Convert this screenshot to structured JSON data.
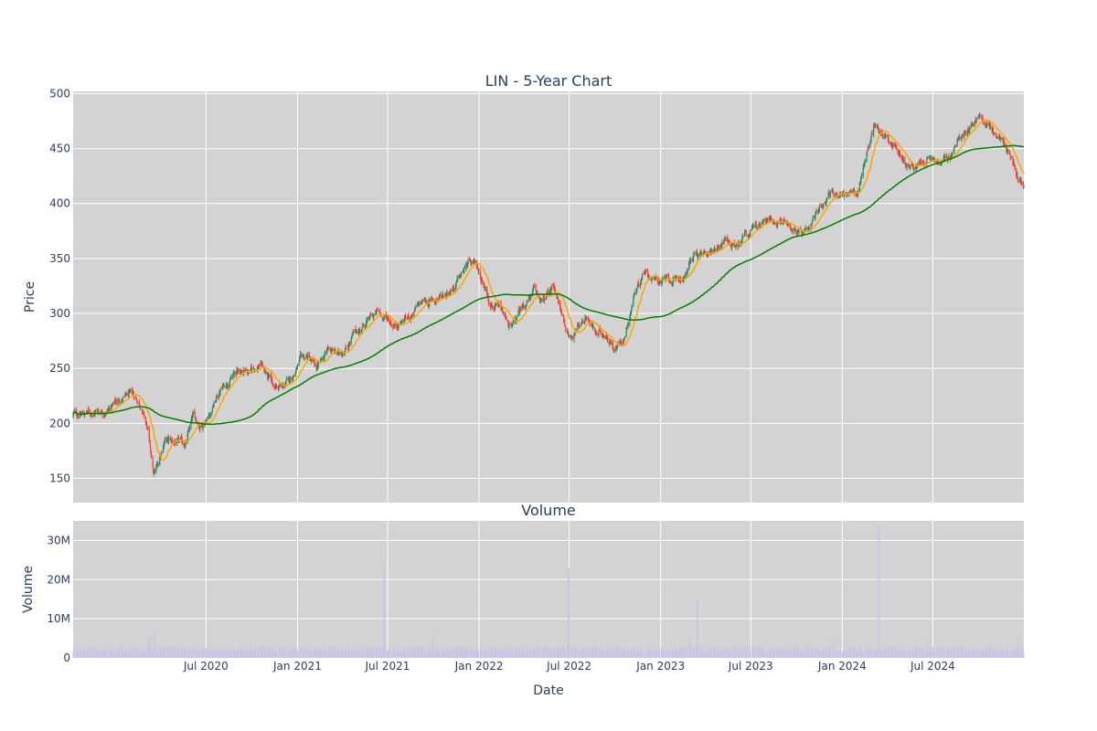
{
  "chart_data": [
    {
      "type": "candlestick",
      "title": "LIN - 5-Year Chart",
      "ylabel": "Price",
      "ylim": [
        128,
        502
      ],
      "yticks": [
        150,
        200,
        250,
        300,
        350,
        400,
        450,
        500
      ],
      "grid": true,
      "background": "#d3d3d3",
      "colors": {
        "up": "#2e8b57",
        "down": "#ff3b30",
        "ma_short": "#ffa500",
        "ma_long": "#008000"
      },
      "date_range": [
        "2019-10-08",
        "2024-12-31"
      ],
      "price_anchors": [
        [
          "2019-10-08",
          208
        ],
        [
          "2019-11-15",
          210
        ],
        [
          "2019-12-20",
          214
        ],
        [
          "2020-01-10",
          222
        ],
        [
          "2020-02-05",
          225
        ],
        [
          "2020-02-21",
          218
        ],
        [
          "2020-03-05",
          195
        ],
        [
          "2020-03-18",
          152
        ],
        [
          "2020-03-25",
          160
        ],
        [
          "2020-04-08",
          185
        ],
        [
          "2020-05-01",
          182
        ],
        [
          "2020-05-20",
          180
        ],
        [
          "2020-06-05",
          205
        ],
        [
          "2020-06-20",
          198
        ],
        [
          "2020-07-08",
          210
        ],
        [
          "2020-07-30",
          230
        ],
        [
          "2020-08-15",
          240
        ],
        [
          "2020-09-05",
          248
        ],
        [
          "2020-10-01",
          248
        ],
        [
          "2020-10-20",
          255
        ],
        [
          "2020-11-10",
          235
        ],
        [
          "2020-12-01",
          232
        ],
        [
          "2020-12-15",
          238
        ],
        [
          "2021-01-05",
          255
        ],
        [
          "2021-01-22",
          260
        ],
        [
          "2021-02-10",
          248
        ],
        [
          "2021-03-05",
          268
        ],
        [
          "2021-03-25",
          262
        ],
        [
          "2021-04-20",
          278
        ],
        [
          "2021-05-15",
          290
        ],
        [
          "2021-06-10",
          300
        ],
        [
          "2021-06-25",
          297
        ],
        [
          "2021-07-15",
          290
        ],
        [
          "2021-08-15",
          298
        ],
        [
          "2021-09-10",
          310
        ],
        [
          "2021-10-05",
          312
        ],
        [
          "2021-10-28",
          320
        ],
        [
          "2021-11-20",
          330
        ],
        [
          "2021-12-10",
          345
        ],
        [
          "2021-12-30",
          340
        ],
        [
          "2022-01-20",
          315
        ],
        [
          "2022-02-15",
          300
        ],
        [
          "2022-03-08",
          285
        ],
        [
          "2022-03-28",
          305
        ],
        [
          "2022-04-20",
          320
        ],
        [
          "2022-05-10",
          310
        ],
        [
          "2022-06-01",
          325
        ],
        [
          "2022-06-15",
          300
        ],
        [
          "2022-06-30",
          280
        ],
        [
          "2022-07-15",
          285
        ],
        [
          "2022-08-05",
          300
        ],
        [
          "2022-08-25",
          280
        ],
        [
          "2022-09-15",
          282
        ],
        [
          "2022-10-01",
          268
        ],
        [
          "2022-10-20",
          280
        ],
        [
          "2022-11-10",
          320
        ],
        [
          "2022-12-01",
          342
        ],
        [
          "2022-12-20",
          330
        ],
        [
          "2023-01-15",
          330
        ],
        [
          "2023-02-01",
          328
        ],
        [
          "2023-02-20",
          335
        ],
        [
          "2023-03-10",
          355
        ],
        [
          "2023-03-28",
          350
        ],
        [
          "2023-04-20",
          360
        ],
        [
          "2023-05-10",
          368
        ],
        [
          "2023-05-30",
          362
        ],
        [
          "2023-06-20",
          375
        ],
        [
          "2023-07-15",
          380
        ],
        [
          "2023-08-10",
          385
        ],
        [
          "2023-09-01",
          385
        ],
        [
          "2023-09-20",
          380
        ],
        [
          "2023-10-10",
          372
        ],
        [
          "2023-10-27",
          370
        ],
        [
          "2023-11-15",
          395
        ],
        [
          "2023-12-05",
          410
        ],
        [
          "2023-12-25",
          410
        ],
        [
          "2024-01-15",
          410
        ],
        [
          "2024-01-30",
          405
        ],
        [
          "2024-02-15",
          440
        ],
        [
          "2024-03-05",
          470
        ],
        [
          "2024-03-28",
          462
        ],
        [
          "2024-04-20",
          450
        ],
        [
          "2024-05-05",
          438
        ],
        [
          "2024-06-01",
          432
        ],
        [
          "2024-06-25",
          440
        ],
        [
          "2024-07-15",
          435
        ],
        [
          "2024-08-05",
          442
        ],
        [
          "2024-08-25",
          460
        ],
        [
          "2024-09-15",
          472
        ],
        [
          "2024-10-01",
          480
        ],
        [
          "2024-10-15",
          472
        ],
        [
          "2024-11-01",
          465
        ],
        [
          "2024-11-20",
          455
        ],
        [
          "2024-12-05",
          440
        ],
        [
          "2024-12-20",
          422
        ],
        [
          "2024-12-31",
          418
        ]
      ]
    },
    {
      "type": "bar",
      "title": "Volume",
      "ylabel": "Volume",
      "xlabel": "Date",
      "ylim": [
        0,
        35000000
      ],
      "yticks": [
        0,
        10000000,
        20000000,
        30000000
      ],
      "ytick_labels": [
        "0",
        "10M",
        "20M",
        "30M"
      ],
      "xticks": [
        "2020-07-01",
        "2021-01-01",
        "2021-07-01",
        "2022-01-01",
        "2022-07-01",
        "2023-01-01",
        "2023-07-01",
        "2024-01-01",
        "2024-07-01"
      ],
      "xtick_labels": [
        "Jul 2020",
        "Jan 2021",
        "Jul 2021",
        "Jan 2022",
        "Jul 2022",
        "Jan 2023",
        "Jul 2023",
        "Jan 2024",
        "Jul 2024"
      ],
      "background": "#d3d3d3",
      "bar_color": "#c8c4e8",
      "typical_volume": 2000000,
      "volume_spikes": [
        [
          "2020-03-20",
          7000000
        ],
        [
          "2020-03-10",
          5500000
        ],
        [
          "2021-06-25",
          23500000
        ],
        [
          "2021-10-01",
          6000000
        ],
        [
          "2022-06-30",
          23000000
        ],
        [
          "2023-03-17",
          15000000
        ],
        [
          "2023-02-28",
          5500000
        ],
        [
          "2023-12-15",
          4500000
        ],
        [
          "2024-03-15",
          34000000
        ],
        [
          "2024-06-21",
          5000000
        ],
        [
          "2024-12-20",
          4500000
        ]
      ]
    }
  ]
}
